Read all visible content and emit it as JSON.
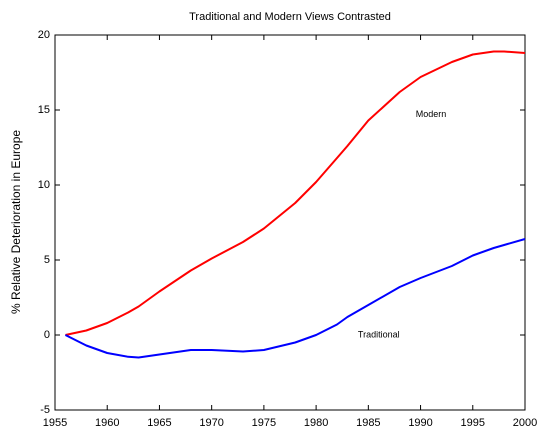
{
  "chart_data": {
    "type": "line",
    "title": "Traditional and Modern Views Contrasted",
    "ylabel": "% Relative Deterioration in Europe",
    "x": [
      1956,
      1958,
      1960,
      1962,
      1963,
      1965,
      1968,
      1970,
      1973,
      1975,
      1978,
      1980,
      1982,
      1983,
      1985,
      1988,
      1990,
      1993,
      1995,
      1997,
      1998,
      2000
    ],
    "series": [
      {
        "name": "Modern",
        "color": "#ff0000",
        "values": [
          0,
          0.3,
          0.8,
          1.5,
          1.9,
          2.9,
          4.3,
          5.1,
          6.2,
          7.1,
          8.8,
          10.2,
          11.8,
          12.6,
          14.3,
          16.2,
          17.2,
          18.2,
          18.7,
          18.9,
          18.9,
          18.8
        ]
      },
      {
        "name": "Traditional",
        "color": "#0000ff",
        "values": [
          0,
          -0.7,
          -1.2,
          -1.45,
          -1.5,
          -1.3,
          -1.0,
          -1.0,
          -1.1,
          -1.0,
          -0.5,
          0,
          0.7,
          1.2,
          2.0,
          3.2,
          3.8,
          4.6,
          5.3,
          5.8,
          6.0,
          6.4
        ]
      }
    ],
    "annotations": [
      "Modern",
      "Traditional"
    ],
    "xlim": [
      1955,
      2000
    ],
    "ylim": [
      -5,
      20
    ],
    "xticks": [
      1955,
      1960,
      1965,
      1970,
      1975,
      1980,
      1985,
      1990,
      1995,
      2000
    ],
    "yticks": [
      -5,
      0,
      5,
      10,
      15,
      20
    ],
    "grid": false
  }
}
